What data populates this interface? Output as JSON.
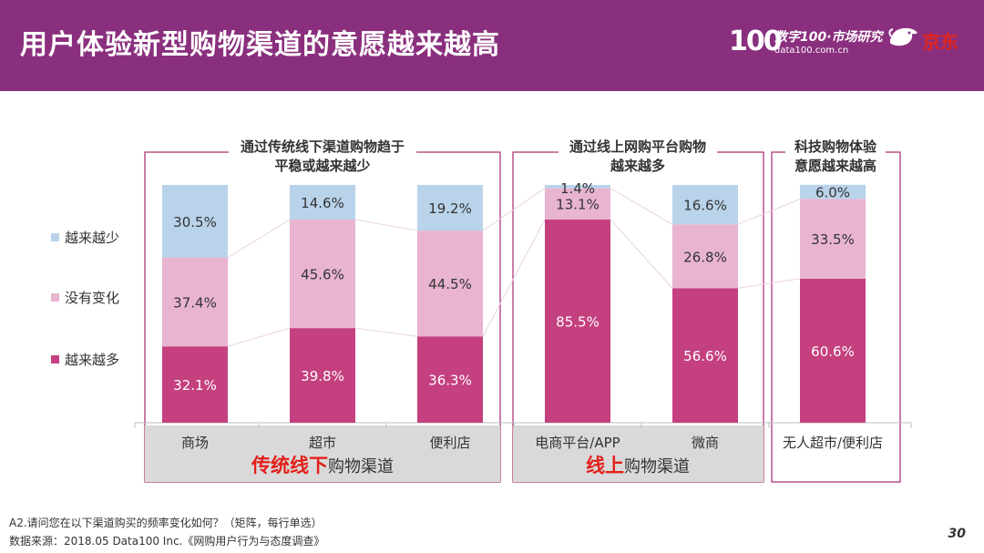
{
  "header": {
    "title": "用户体验新型购物渠道的意愿越来越高",
    "logo_mark": "100",
    "logo_cn": "数字100·市场研究",
    "logo_domain": "data100.com.cn",
    "partner_logo": "京东"
  },
  "groups": [
    {
      "label": "通过传统线下渠道购物趋于平稳或越来越少",
      "bottom_highlight": "传统线下",
      "bottom_rest": "购物渠道"
    },
    {
      "label": "通过线上网购平台购物越来越多",
      "bottom_highlight": "线上",
      "bottom_rest": "购物渠道"
    },
    {
      "label": "科技购物体验意愿越来越高",
      "bottom_highlight": "",
      "bottom_rest": ""
    }
  ],
  "chart_data": {
    "type": "bar",
    "stacked": true,
    "percent_stacked": true,
    "categories": [
      "商场",
      "超市",
      "便利店",
      "电商平台/APP",
      "微商",
      "无人超市/便利店"
    ],
    "series": [
      {
        "name": "越来越多",
        "color": "#c4407f",
        "values": [
          32.1,
          39.8,
          36.3,
          85.5,
          56.6,
          60.6
        ]
      },
      {
        "name": "没有变化",
        "color": "#e8b4d0",
        "values": [
          37.4,
          45.6,
          44.5,
          13.1,
          26.8,
          33.5
        ]
      },
      {
        "name": "越来越少",
        "color": "#b9d3ea",
        "values": [
          30.5,
          14.6,
          19.2,
          1.4,
          16.6,
          6.0
        ]
      }
    ],
    "data_labels": [
      [
        "32.1%",
        "39.8%",
        "36.3%",
        "85.5%",
        "56.6%",
        "60.6%"
      ],
      [
        "37.4%",
        "45.6%",
        "44.5%",
        "13.1%",
        "26.8%",
        "33.5%"
      ],
      [
        "30.5%",
        "14.6%",
        "19.2%",
        "1.4%",
        "16.6%",
        "6.0%"
      ]
    ],
    "legend_order": [
      "越来越少",
      "没有变化",
      "越来越多"
    ],
    "legend_position": "left",
    "ylim": [
      0,
      100
    ]
  },
  "colors": {
    "header": "#8a2f7e",
    "group_border": "#a6286a",
    "bottom_band": "#d9d9d9",
    "highlight_red": "#e3201b"
  },
  "footer": {
    "question": "A2.请问您在以下渠道购买的频率变化如何？（矩阵，每行单选）",
    "source": "数据来源：2018.05 Data100 Inc.《网购用户行为与态度调查》",
    "page": "30"
  }
}
